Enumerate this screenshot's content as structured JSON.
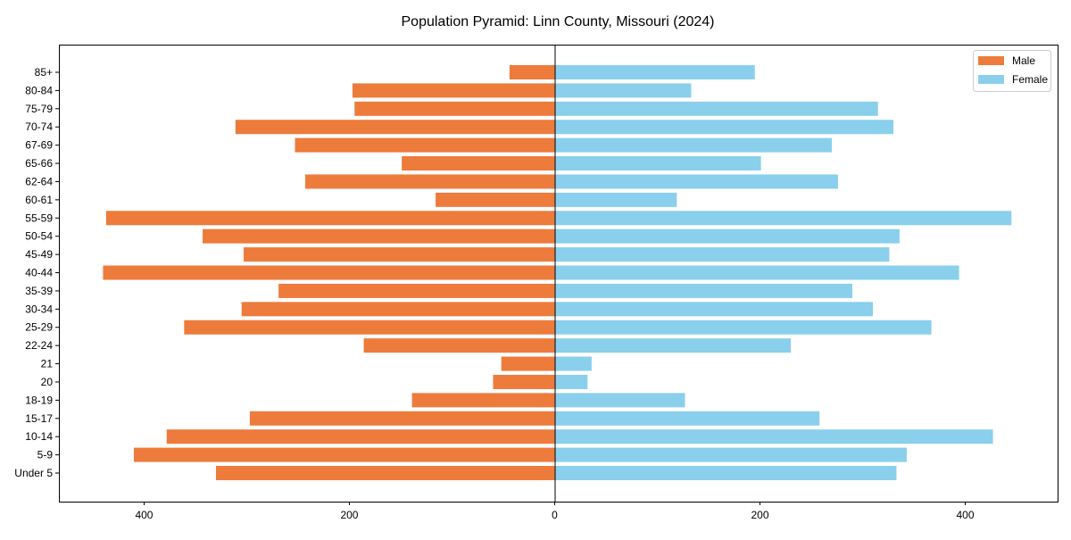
{
  "chart_data": {
    "type": "bar",
    "orientation": "horizontal",
    "title": "Population Pyramid: Linn County, Missouri (2024)",
    "xlabel": "",
    "ylabel": "",
    "categories": [
      "Under 5",
      "5-9",
      "10-14",
      "15-17",
      "18-19",
      "20",
      "21",
      "22-24",
      "25-29",
      "30-34",
      "35-39",
      "40-44",
      "45-49",
      "50-54",
      "55-59",
      "60-61",
      "62-64",
      "65-66",
      "67-69",
      "70-74",
      "75-79",
      "80-84",
      "85+"
    ],
    "series": [
      {
        "name": "Male",
        "color": "#ED7B3C",
        "values": [
          330,
          410,
          378,
          297,
          139,
          60,
          52,
          186,
          361,
          305,
          269,
          440,
          303,
          343,
          437,
          116,
          243,
          149,
          253,
          311,
          195,
          197,
          44
        ]
      },
      {
        "name": "Female",
        "color": "#8ACFEB",
        "values": [
          333,
          343,
          427,
          258,
          127,
          32,
          36,
          230,
          367,
          310,
          290,
          394,
          326,
          336,
          445,
          119,
          276,
          201,
          270,
          330,
          315,
          133,
          195
        ]
      }
    ],
    "xticks": [
      -400,
      -200,
      0,
      200,
      400
    ],
    "xtick_labels": [
      "400",
      "200",
      "0",
      "200",
      "400"
    ],
    "xlim": [
      -483,
      490
    ],
    "grid": false,
    "legend_position": "top-right"
  }
}
